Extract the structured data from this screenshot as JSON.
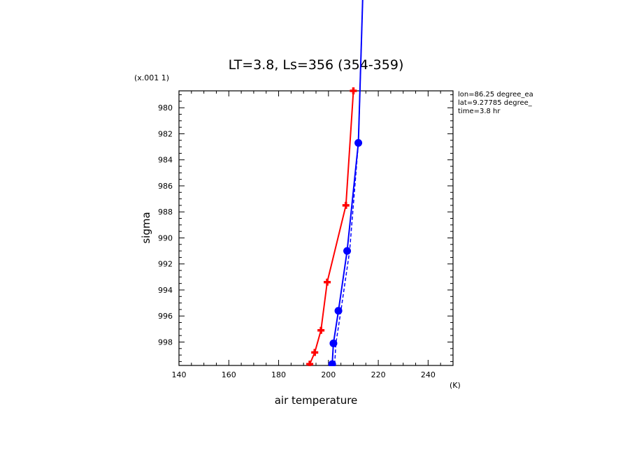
{
  "chart_data": {
    "type": "line",
    "title": "LT=3.8, Ls=356 (354-359)",
    "xlabel": "air temperature",
    "x_unit": "(K)",
    "ylabel": "sigma",
    "y_scale_label": "(x.001 1)",
    "xlim": [
      140,
      250
    ],
    "ylim": [
      999.8,
      978.7
    ],
    "x_ticks": [
      140,
      160,
      180,
      200,
      220,
      240
    ],
    "y_ticks": [
      980,
      982,
      984,
      986,
      988,
      990,
      992,
      994,
      996,
      998
    ],
    "info": [
      "lon=86.25 degree_ea",
      "lat=9.27785 degree_",
      "time=3.8 hr"
    ],
    "series": [
      {
        "color": "#ff0000",
        "marker": "plus",
        "points": [
          [
            192.5,
            999.7
          ],
          [
            194.5,
            998.8
          ],
          [
            197.0,
            997.1
          ],
          [
            199.5,
            993.4
          ],
          [
            207.0,
            987.5
          ],
          [
            210.0,
            978.7
          ]
        ]
      },
      {
        "color": "#0000ff",
        "marker": "dot",
        "points": [
          [
            201.5,
            999.7
          ],
          [
            202.0,
            998.1
          ],
          [
            204.0,
            995.6
          ],
          [
            207.5,
            991.0
          ],
          [
            212.0,
            982.7
          ],
          [
            214.0,
            970.0
          ]
        ]
      },
      {
        "color": "#0000ff",
        "marker": "dot",
        "dashed": true,
        "points": [
          [
            202.5,
            999.7
          ],
          [
            203.0,
            998.1
          ],
          [
            205.0,
            995.6
          ],
          [
            208.5,
            991.0
          ],
          [
            212.0,
            982.7
          ],
          [
            214.0,
            970.0
          ]
        ]
      }
    ]
  }
}
